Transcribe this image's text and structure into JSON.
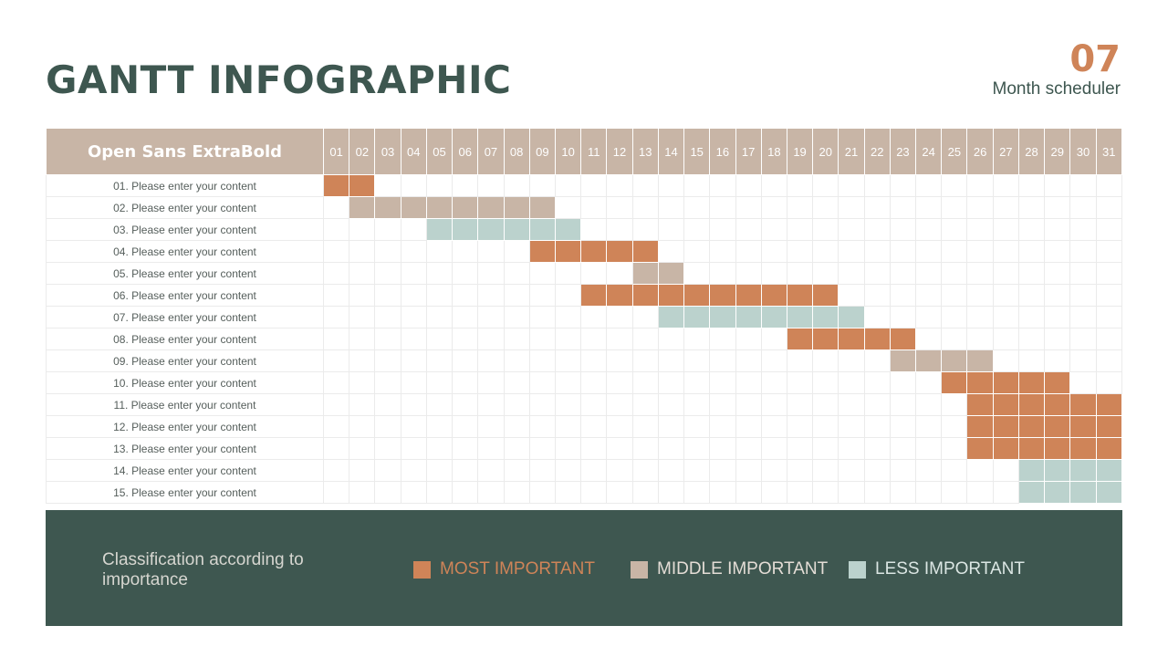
{
  "header": {
    "title": "GANTT INFOGRAPHIC",
    "month_number": "07",
    "month_label": "Month scheduler"
  },
  "colors": {
    "most": "#cf8458",
    "middle": "#c8b5a6",
    "less": "#bbd2cd",
    "dark": "#3e5750"
  },
  "chart_data": {
    "type": "table",
    "task_column_header": "Open Sans ExtraBold",
    "days": [
      "01",
      "02",
      "03",
      "04",
      "05",
      "06",
      "07",
      "08",
      "09",
      "10",
      "11",
      "12",
      "13",
      "14",
      "15",
      "16",
      "17",
      "18",
      "19",
      "20",
      "21",
      "22",
      "23",
      "24",
      "25",
      "26",
      "27",
      "28",
      "29",
      "30",
      "31"
    ],
    "tasks": [
      {
        "label": "01. Please enter your content",
        "start": 1,
        "end": 2,
        "category": "most"
      },
      {
        "label": "02. Please enter your content",
        "start": 2,
        "end": 9,
        "category": "middle"
      },
      {
        "label": "03. Please enter your content",
        "start": 5,
        "end": 10,
        "category": "less"
      },
      {
        "label": "04. Please enter your content",
        "start": 9,
        "end": 13,
        "category": "most"
      },
      {
        "label": "05. Please enter your content",
        "start": 13,
        "end": 14,
        "category": "middle"
      },
      {
        "label": "06. Please enter your content",
        "start": 11,
        "end": 20,
        "category": "most"
      },
      {
        "label": "07. Please enter your content",
        "start": 14,
        "end": 21,
        "category": "less"
      },
      {
        "label": "08. Please enter your content",
        "start": 19,
        "end": 23,
        "category": "most"
      },
      {
        "label": "09. Please enter your content",
        "start": 23,
        "end": 26,
        "category": "middle"
      },
      {
        "label": "10. Please enter your content",
        "start": 25,
        "end": 29,
        "category": "most"
      },
      {
        "label": "11. Please enter your content",
        "start": 26,
        "end": 31,
        "category": "most"
      },
      {
        "label": "12. Please enter your content",
        "start": 26,
        "end": 31,
        "category": "most"
      },
      {
        "label": "13. Please enter your content",
        "start": 26,
        "end": 31,
        "category": "most"
      },
      {
        "label": "14. Please enter your content",
        "start": 28,
        "end": 31,
        "category": "less"
      },
      {
        "label": "15. Please enter your content",
        "start": 28,
        "end": 31,
        "category": "less"
      }
    ],
    "legend": [
      {
        "key": "most",
        "label": "MOST IMPORTANT"
      },
      {
        "key": "middle",
        "label": "MIDDLE IMPORTANT"
      },
      {
        "key": "less",
        "label": "LESS IMPORTANT"
      }
    ]
  },
  "legend_panel": {
    "title": "Classification according to importance"
  }
}
